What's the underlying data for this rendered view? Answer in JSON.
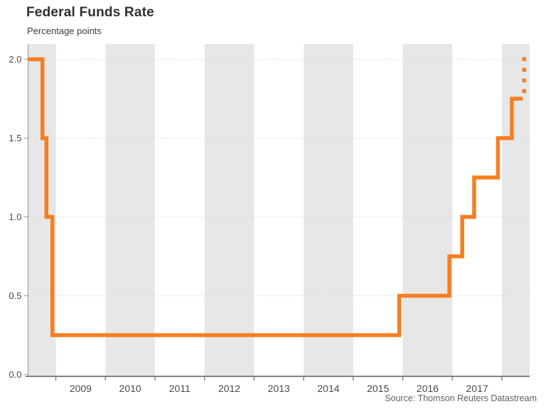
{
  "header": {
    "title": "Federal Funds Rate",
    "subtitle": "Percentage points"
  },
  "footer": {
    "source": "Source: Thomson Reuters Datastream"
  },
  "chart_data": {
    "type": "line",
    "subtype": "step",
    "title": "Federal Funds Rate",
    "ylabel": "Percentage points",
    "unit": "percentage points",
    "source": "Source: Thomson Reuters Datastream",
    "grid": "dotted horizontal gridlines at labeled y values",
    "legend": "none",
    "xlim": [
      2008.44,
      2018.56
    ],
    "ylim": [
      0,
      2.1
    ],
    "yticks": [
      {
        "v": 0.0,
        "label": "0.0"
      },
      {
        "v": 0.5,
        "label": "0.5"
      },
      {
        "v": 1.0,
        "label": "1.0"
      },
      {
        "v": 1.5,
        "label": "1.5"
      },
      {
        "v": 2.0,
        "label": "2.0"
      }
    ],
    "year_ticks": [
      2009,
      2010,
      2011,
      2012,
      2013,
      2014,
      2015,
      2016,
      2017,
      2018
    ],
    "year_labels": [
      {
        "year": 2009,
        "label": "2009"
      },
      {
        "year": 2010,
        "label": "2010"
      },
      {
        "year": 2011,
        "label": "2011"
      },
      {
        "year": 2012,
        "label": "2012"
      },
      {
        "year": 2013,
        "label": "2013"
      },
      {
        "year": 2014,
        "label": "2014"
      },
      {
        "year": 2015,
        "label": "2015"
      },
      {
        "year": 2016,
        "label": "2016"
      },
      {
        "year": 2017,
        "label": "2017"
      }
    ],
    "shaded_years": [
      2008,
      2010,
      2012,
      2014,
      2016,
      2018
    ],
    "colors": {
      "line": "#f77e20",
      "band": "#e7e7e7",
      "grid": "#cbcbcb",
      "axis": "#a3a3a3",
      "axis_bottom": "#707070",
      "text": "#444b52",
      "title": "#303030",
      "source": "#616161"
    },
    "series": [
      {
        "name": "federal-funds-rate-actual",
        "style": "solid",
        "start": {
          "year": 2008.44,
          "rate": 2.0
        },
        "changes": [
          {
            "year": 2008.73,
            "rate": 1.5
          },
          {
            "year": 2008.81,
            "rate": 1.0
          },
          {
            "year": 2008.93,
            "rate": 0.25
          },
          {
            "year": 2015.93,
            "rate": 0.5
          },
          {
            "year": 2016.94,
            "rate": 0.75
          },
          {
            "year": 2017.2,
            "rate": 1.0
          },
          {
            "year": 2017.44,
            "rate": 1.25
          },
          {
            "year": 2017.92,
            "rate": 1.5
          },
          {
            "year": 2018.2,
            "rate": 1.75
          }
        ],
        "end_year": 2018.42
      },
      {
        "name": "federal-funds-rate-projected",
        "style": "dotted",
        "x_year": 2018.45,
        "from_rate": 1.75,
        "to_rate": 2.0
      }
    ]
  }
}
